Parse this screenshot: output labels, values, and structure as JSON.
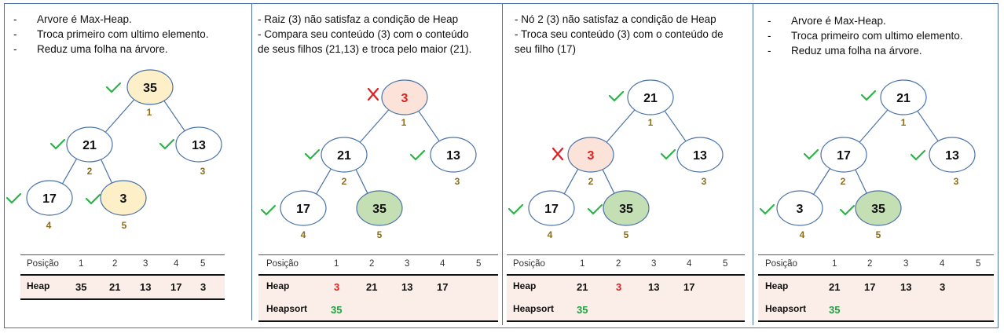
{
  "panels": [
    {
      "text": [
        "-",
        "Arvore é Max-Heap.",
        "-",
        "Troca primeiro com ultimo elemento.",
        "-",
        "Reduz uma folha na árvore."
      ],
      "nodes": [
        {
          "value": "35",
          "index": "1",
          "fill": "#fdf0c8",
          "mark": "check",
          "valueColor": "#111"
        },
        {
          "value": "21",
          "index": "2",
          "fill": "#ffffff",
          "mark": "check",
          "valueColor": "#111"
        },
        {
          "value": "13",
          "index": "3",
          "fill": "#ffffff",
          "mark": "check",
          "valueColor": "#111"
        },
        {
          "value": "17",
          "index": "4",
          "fill": "#ffffff",
          "mark": "check",
          "valueColor": "#111"
        },
        {
          "value": "3",
          "index": "5",
          "fill": "#fdf0c8",
          "mark": "check",
          "valueColor": "#111"
        }
      ],
      "table": {
        "header_label": "Posição",
        "positions": [
          "1",
          "2",
          "3",
          "4",
          "5"
        ],
        "heap_label": "Heap",
        "heap": [
          {
            "v": "35",
            "c": "black"
          },
          {
            "v": "21",
            "c": "black"
          },
          {
            "v": "13",
            "c": "black"
          },
          {
            "v": "17",
            "c": "black"
          },
          {
            "v": "3",
            "c": "black"
          }
        ],
        "heapsort_label": "",
        "heapsort": []
      }
    },
    {
      "text": [
        "- Raiz (3) não satisfaz a condição de Heap",
        "- Compara seu conteúdo (3) com o conteúdo",
        "de seus  filhos (21,13) e troca pelo maior (21)."
      ],
      "nodes": [
        {
          "value": "3",
          "index": "1",
          "fill": "#fbe3da",
          "mark": "cross",
          "valueColor": "#e02020"
        },
        {
          "value": "21",
          "index": "2",
          "fill": "#ffffff",
          "mark": "check",
          "valueColor": "#111"
        },
        {
          "value": "13",
          "index": "3",
          "fill": "#ffffff",
          "mark": "check",
          "valueColor": "#111"
        },
        {
          "value": "17",
          "index": "4",
          "fill": "#ffffff",
          "mark": "check",
          "valueColor": "#111"
        },
        {
          "value": "35",
          "index": "5",
          "fill": "#c5dfb4",
          "mark": "none",
          "valueColor": "#111"
        }
      ],
      "table": {
        "header_label": "Posição",
        "positions": [
          "1",
          "2",
          "3",
          "4",
          "5"
        ],
        "heap_label": "Heap",
        "heap": [
          {
            "v": "3",
            "c": "red"
          },
          {
            "v": "21",
            "c": "black"
          },
          {
            "v": "13",
            "c": "black"
          },
          {
            "v": "17",
            "c": "black"
          }
        ],
        "heapsort_label": "Heapsort",
        "heapsort": [
          {
            "v": "35",
            "c": "green"
          }
        ]
      }
    },
    {
      "text": [
        "-  Nó 2 (3) não satisfaz a condição de Heap",
        "- Troca seu conteúdo (3) com o conteúdo de",
        "seu  filho (17)"
      ],
      "nodes": [
        {
          "value": "21",
          "index": "1",
          "fill": "#ffffff",
          "mark": "check",
          "valueColor": "#111"
        },
        {
          "value": "3",
          "index": "2",
          "fill": "#fbe3da",
          "mark": "cross",
          "valueColor": "#e02020"
        },
        {
          "value": "13",
          "index": "3",
          "fill": "#ffffff",
          "mark": "check",
          "valueColor": "#111"
        },
        {
          "value": "17",
          "index": "4",
          "fill": "#ffffff",
          "mark": "check",
          "valueColor": "#111"
        },
        {
          "value": "35",
          "index": "5",
          "fill": "#c5dfb4",
          "mark": "check",
          "valueColor": "#111"
        }
      ],
      "table": {
        "header_label": "Posição",
        "positions": [
          "1",
          "2",
          "3",
          "4",
          "5"
        ],
        "heap_label": "Heap",
        "heap": [
          {
            "v": "21",
            "c": "black"
          },
          {
            "v": "3",
            "c": "red"
          },
          {
            "v": "13",
            "c": "black"
          },
          {
            "v": "17",
            "c": "black"
          }
        ],
        "heapsort_label": "Heapsort",
        "heapsort": [
          {
            "v": "35",
            "c": "green"
          }
        ]
      }
    },
    {
      "text": [
        "-",
        "Arvore é Max-Heap.",
        "-",
        "Troca primeiro com ultimo elemento.",
        "-",
        "Reduz uma folha na árvore."
      ],
      "nodes": [
        {
          "value": "21",
          "index": "1",
          "fill": "#ffffff",
          "mark": "check",
          "valueColor": "#111"
        },
        {
          "value": "17",
          "index": "2",
          "fill": "#ffffff",
          "mark": "check",
          "valueColor": "#111"
        },
        {
          "value": "13",
          "index": "3",
          "fill": "#ffffff",
          "mark": "check",
          "valueColor": "#111"
        },
        {
          "value": "3",
          "index": "4",
          "fill": "#ffffff",
          "mark": "check",
          "valueColor": "#111"
        },
        {
          "value": "35",
          "index": "5",
          "fill": "#c5dfb4",
          "mark": "check",
          "valueColor": "#111"
        }
      ],
      "table": {
        "header_label": "Posição",
        "positions": [
          "1",
          "2",
          "3",
          "4",
          "5"
        ],
        "heap_label": "Heap",
        "heap": [
          {
            "v": "21",
            "c": "black"
          },
          {
            "v": "17",
            "c": "black"
          },
          {
            "v": "13",
            "c": "black"
          },
          {
            "v": "3",
            "c": "black"
          }
        ],
        "heapsort_label": "Heapsort",
        "heapsort": [
          {
            "v": "35",
            "c": "green"
          }
        ]
      }
    }
  ],
  "colors": {
    "check": "#2db34a",
    "cross": "#e02020",
    "edge": "#4a72a8",
    "node_stroke": "#4a72a8",
    "index": "#8a6d1a"
  }
}
